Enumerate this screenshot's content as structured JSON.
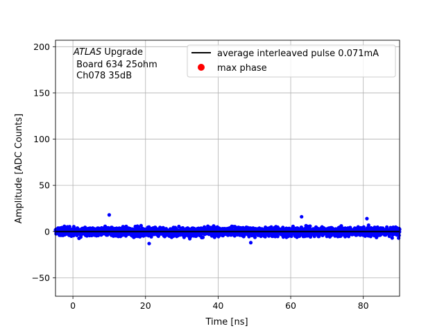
{
  "chart_data": {
    "type": "scatter",
    "title": "",
    "xlabel": "Time [ns]",
    "ylabel": "Amplitude [ADC Counts]",
    "xlim": [
      -4.8,
      90
    ],
    "ylim": [
      -70,
      207
    ],
    "xticks": [
      0,
      20,
      40,
      60,
      80
    ],
    "yticks": [
      -50,
      0,
      50,
      100,
      150,
      200
    ],
    "grid": true,
    "legend_position": "top-right",
    "annotation": {
      "italic_part": "ATLAS",
      "line1_rest": " Upgrade",
      "line2": " Board 634 25ohm",
      "line3": " Ch078 35dB"
    },
    "series": [
      {
        "name": "average interleaved pulse 0.071mA",
        "kind": "line",
        "color": "#000000",
        "x": [
          -4.8,
          90
        ],
        "y": [
          0,
          0
        ]
      },
      {
        "name": "max phase",
        "kind": "scatter",
        "color": "#ff0000",
        "x": [],
        "y": []
      },
      {
        "name": "samples",
        "kind": "scatter",
        "color": "#0000ff",
        "x_range": [
          -4.8,
          90
        ],
        "y_center": 0,
        "y_typical_spread": 4,
        "y_min": -13,
        "y_max": 18,
        "n_points": 2400
      }
    ]
  }
}
